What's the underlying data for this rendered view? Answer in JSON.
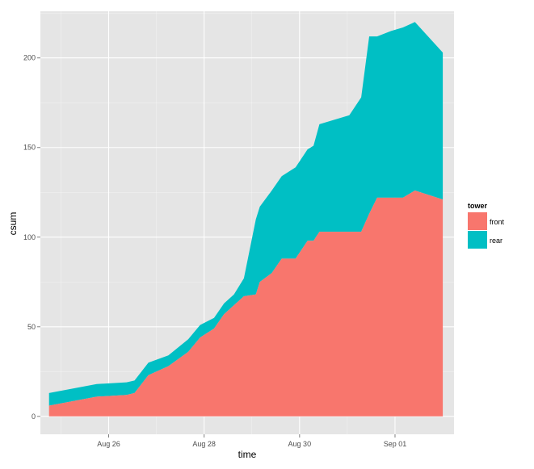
{
  "chart_data": {
    "type": "area",
    "stacked": true,
    "xlabel": "time",
    "ylabel": "csum",
    "x_tick_labels": [
      "Aug 26",
      "Aug 28",
      "Aug 30",
      "Sep 01"
    ],
    "x_tick_dates": [
      "2013-08-26",
      "2013-08-28",
      "2013-08-30",
      "2013-09-01"
    ],
    "xlim": [
      "2013-08-24 13:40",
      "2013-09-02 05:40"
    ],
    "y_ticks": [
      0,
      50,
      100,
      150,
      200
    ],
    "ylim": [
      -10,
      226
    ],
    "grid": true,
    "legend": {
      "title": "tower",
      "position": "right",
      "entries": [
        "front",
        "rear"
      ]
    },
    "colors": {
      "front": "#F8766D",
      "rear": "#00BFC4",
      "panel": "#E5E5E5",
      "grid": "#FFFFFF"
    },
    "series": [
      {
        "name": "front",
        "points": [
          [
            "2013-08-24 18:00",
            6
          ],
          [
            "2013-08-25 18:00",
            11
          ],
          [
            "2013-08-26 09:00",
            12
          ],
          [
            "2013-08-26 13:00",
            13
          ],
          [
            "2013-08-26 20:00",
            23
          ],
          [
            "2013-08-27 06:00",
            28
          ],
          [
            "2013-08-27 16:00",
            36
          ],
          [
            "2013-08-27 22:00",
            44
          ],
          [
            "2013-08-28 05:00",
            49
          ],
          [
            "2013-08-28 10:00",
            57
          ],
          [
            "2013-08-28 15:00",
            62
          ],
          [
            "2013-08-28 20:00",
            67
          ],
          [
            "2013-08-29 02:00",
            68
          ],
          [
            "2013-08-29 04:00",
            75
          ],
          [
            "2013-08-29 10:00",
            80
          ],
          [
            "2013-08-29 15:00",
            88
          ],
          [
            "2013-08-29 22:00",
            88
          ],
          [
            "2013-08-30 04:00",
            98
          ],
          [
            "2013-08-30 07:00",
            98
          ],
          [
            "2013-08-30 10:00",
            103
          ],
          [
            "2013-08-31 01:00",
            103
          ],
          [
            "2013-08-31 07:00",
            103
          ],
          [
            "2013-08-31 11:00",
            113
          ],
          [
            "2013-08-31 15:00",
            122
          ],
          [
            "2013-08-31 22:00",
            122
          ],
          [
            "2013-09-01 04:00",
            122
          ],
          [
            "2013-09-01 10:00",
            126
          ],
          [
            "2013-09-02 00:00",
            121
          ]
        ]
      },
      {
        "name": "rear",
        "points": [
          [
            "2013-08-24 18:00",
            7
          ],
          [
            "2013-08-25 18:00",
            7
          ],
          [
            "2013-08-26 09:00",
            7
          ],
          [
            "2013-08-26 13:00",
            7
          ],
          [
            "2013-08-26 20:00",
            7
          ],
          [
            "2013-08-27 06:00",
            6
          ],
          [
            "2013-08-27 16:00",
            7
          ],
          [
            "2013-08-27 22:00",
            7
          ],
          [
            "2013-08-28 05:00",
            6
          ],
          [
            "2013-08-28 10:00",
            6
          ],
          [
            "2013-08-28 15:00",
            6
          ],
          [
            "2013-08-28 20:00",
            10
          ],
          [
            "2013-08-29 02:00",
            42
          ],
          [
            "2013-08-29 04:00",
            42
          ],
          [
            "2013-08-29 10:00",
            46
          ],
          [
            "2013-08-29 15:00",
            46
          ],
          [
            "2013-08-29 22:00",
            51
          ],
          [
            "2013-08-30 04:00",
            51
          ],
          [
            "2013-08-30 07:00",
            53
          ],
          [
            "2013-08-30 10:00",
            60
          ],
          [
            "2013-08-31 01:00",
            65
          ],
          [
            "2013-08-31 07:00",
            75
          ],
          [
            "2013-08-31 11:00",
            99
          ],
          [
            "2013-08-31 15:00",
            90
          ],
          [
            "2013-08-31 22:00",
            93
          ],
          [
            "2013-09-01 04:00",
            95
          ],
          [
            "2013-09-01 10:00",
            94
          ],
          [
            "2013-09-02 00:00",
            82
          ]
        ]
      }
    ]
  }
}
